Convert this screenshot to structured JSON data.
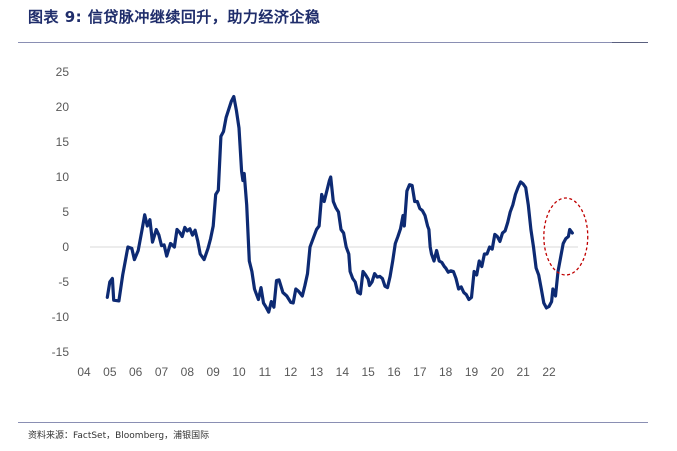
{
  "header": {
    "title": "图表 9: 信贷脉冲继续回升，助力经济企稳"
  },
  "footer": {
    "source": "资料来源：FactSet，Bloomberg，浦银国际"
  },
  "colors": {
    "series": "#0d2a73",
    "highlight": "#c00000",
    "title": "#1f2d6b"
  },
  "chart_data": {
    "type": "line",
    "title": "信贷脉冲继续回升，助力经济企稳",
    "xlabel": "",
    "ylabel": "",
    "xlim": [
      2004,
      2023.2
    ],
    "ylim": [
      -15,
      25
    ],
    "y_ticks": [
      25,
      20,
      15,
      10,
      5,
      0,
      -5,
      -10,
      -15
    ],
    "x_ticks": [
      {
        "label": "04",
        "value": 2004
      },
      {
        "label": "05",
        "value": 2005
      },
      {
        "label": "06",
        "value": 2006
      },
      {
        "label": "07",
        "value": 2007
      },
      {
        "label": "08",
        "value": 2008
      },
      {
        "label": "09",
        "value": 2009
      },
      {
        "label": "10",
        "value": 2010
      },
      {
        "label": "11",
        "value": 2011
      },
      {
        "label": "12",
        "value": 2012
      },
      {
        "label": "13",
        "value": 2013
      },
      {
        "label": "14",
        "value": 2014
      },
      {
        "label": "15",
        "value": 2015
      },
      {
        "label": "16",
        "value": 2016
      },
      {
        "label": "17",
        "value": 2017
      },
      {
        "label": "18",
        "value": 2018
      },
      {
        "label": "19",
        "value": 2019
      },
      {
        "label": "20",
        "value": 2020
      },
      {
        "label": "21",
        "value": 2021
      },
      {
        "label": "22",
        "value": 2022
      }
    ],
    "grid": false,
    "legend": "none",
    "series": [
      {
        "points": [
          [
            2004.9,
            -7.2
          ],
          [
            2005.0,
            -5.0
          ],
          [
            2005.1,
            -4.5
          ],
          [
            2005.15,
            -7.6
          ],
          [
            2005.35,
            -7.7
          ],
          [
            2005.5,
            -4.0
          ],
          [
            2005.7,
            0.0
          ],
          [
            2005.85,
            -0.2
          ],
          [
            2005.95,
            -1.8
          ],
          [
            2006.1,
            -0.5
          ],
          [
            2006.25,
            2.5
          ],
          [
            2006.35,
            4.6
          ],
          [
            2006.45,
            3.0
          ],
          [
            2006.55,
            3.9
          ],
          [
            2006.65,
            0.7
          ],
          [
            2006.8,
            2.5
          ],
          [
            2006.9,
            1.7
          ],
          [
            2007.0,
            0.2
          ],
          [
            2007.1,
            0.3
          ],
          [
            2007.2,
            -1.3
          ],
          [
            2007.35,
            0.5
          ],
          [
            2007.5,
            0.0
          ],
          [
            2007.6,
            2.5
          ],
          [
            2007.7,
            2.1
          ],
          [
            2007.8,
            1.5
          ],
          [
            2007.9,
            2.8
          ],
          [
            2008.0,
            2.3
          ],
          [
            2008.1,
            2.6
          ],
          [
            2008.2,
            1.7
          ],
          [
            2008.3,
            2.4
          ],
          [
            2008.4,
            0.9
          ],
          [
            2008.5,
            -1.0
          ],
          [
            2008.65,
            -1.8
          ],
          [
            2008.8,
            -0.2
          ],
          [
            2008.9,
            1.2
          ],
          [
            2009.0,
            3.0
          ],
          [
            2009.1,
            7.5
          ],
          [
            2009.2,
            8.1
          ],
          [
            2009.3,
            15.8
          ],
          [
            2009.4,
            16.5
          ],
          [
            2009.5,
            18.5
          ],
          [
            2009.7,
            20.8
          ],
          [
            2009.8,
            21.5
          ],
          [
            2009.9,
            19.5
          ],
          [
            2010.0,
            17.0
          ],
          [
            2010.1,
            10.8
          ],
          [
            2010.15,
            9.5
          ],
          [
            2010.2,
            10.5
          ],
          [
            2010.3,
            6.0
          ],
          [
            2010.4,
            -2.0
          ],
          [
            2010.5,
            -3.5
          ],
          [
            2010.6,
            -6.0
          ],
          [
            2010.75,
            -7.5
          ],
          [
            2010.85,
            -5.8
          ],
          [
            2010.95,
            -8.0
          ],
          [
            2011.05,
            -8.6
          ],
          [
            2011.15,
            -9.3
          ],
          [
            2011.25,
            -7.8
          ],
          [
            2011.35,
            -8.6
          ],
          [
            2011.45,
            -4.8
          ],
          [
            2011.55,
            -4.7
          ],
          [
            2011.7,
            -6.5
          ],
          [
            2011.85,
            -7.0
          ],
          [
            2012.0,
            -7.9
          ],
          [
            2012.1,
            -8.0
          ],
          [
            2012.2,
            -6.0
          ],
          [
            2012.3,
            -6.3
          ],
          [
            2012.45,
            -7.0
          ],
          [
            2012.55,
            -5.5
          ],
          [
            2012.65,
            -3.8
          ],
          [
            2012.75,
            0.0
          ],
          [
            2012.9,
            1.5
          ],
          [
            2013.0,
            2.5
          ],
          [
            2013.1,
            3.0
          ],
          [
            2013.2,
            7.5
          ],
          [
            2013.3,
            6.5
          ],
          [
            2013.4,
            8.0
          ],
          [
            2013.5,
            9.5
          ],
          [
            2013.55,
            10.0
          ],
          [
            2013.65,
            6.5
          ],
          [
            2013.75,
            5.6
          ],
          [
            2013.85,
            5.0
          ],
          [
            2013.95,
            2.5
          ],
          [
            2014.05,
            2.0
          ],
          [
            2014.15,
            0.0
          ],
          [
            2014.25,
            -1.0
          ],
          [
            2014.3,
            -3.5
          ],
          [
            2014.4,
            -4.5
          ],
          [
            2014.5,
            -5.0
          ],
          [
            2014.6,
            -6.5
          ],
          [
            2014.7,
            -6.7
          ],
          [
            2014.8,
            -3.5
          ],
          [
            2014.9,
            -4.0
          ],
          [
            2015.0,
            -4.6
          ],
          [
            2015.05,
            -5.5
          ],
          [
            2015.15,
            -5.0
          ],
          [
            2015.25,
            -3.8
          ],
          [
            2015.35,
            -4.3
          ],
          [
            2015.45,
            -4.2
          ],
          [
            2015.55,
            -4.5
          ],
          [
            2015.65,
            -5.6
          ],
          [
            2015.75,
            -5.8
          ],
          [
            2015.85,
            -4.2
          ],
          [
            2015.95,
            -2.0
          ],
          [
            2016.05,
            0.5
          ],
          [
            2016.15,
            1.5
          ],
          [
            2016.25,
            2.6
          ],
          [
            2016.35,
            4.5
          ],
          [
            2016.4,
            3.0
          ],
          [
            2016.5,
            8.0
          ],
          [
            2016.6,
            8.9
          ],
          [
            2016.7,
            8.8
          ],
          [
            2016.8,
            6.5
          ],
          [
            2016.9,
            6.5
          ],
          [
            2017.0,
            5.5
          ],
          [
            2017.1,
            5.2
          ],
          [
            2017.2,
            4.5
          ],
          [
            2017.3,
            3.0
          ],
          [
            2017.35,
            2.5
          ],
          [
            2017.4,
            0.0
          ],
          [
            2017.45,
            -1.0
          ],
          [
            2017.55,
            -2.0
          ],
          [
            2017.65,
            -0.5
          ],
          [
            2017.75,
            -2.0
          ],
          [
            2017.85,
            -2.2
          ],
          [
            2017.95,
            -2.8
          ],
          [
            2018.0,
            -3.0
          ],
          [
            2018.1,
            -3.6
          ],
          [
            2018.2,
            -3.4
          ],
          [
            2018.3,
            -3.5
          ],
          [
            2018.4,
            -4.5
          ],
          [
            2018.5,
            -6.0
          ],
          [
            2018.6,
            -5.7
          ],
          [
            2018.7,
            -6.5
          ],
          [
            2018.8,
            -6.8
          ],
          [
            2018.9,
            -7.5
          ],
          [
            2019.0,
            -7.2
          ],
          [
            2019.1,
            -3.5
          ],
          [
            2019.2,
            -4.0
          ],
          [
            2019.3,
            -2.0
          ],
          [
            2019.4,
            -2.8
          ],
          [
            2019.5,
            -1.0
          ],
          [
            2019.6,
            -1.0
          ],
          [
            2019.7,
            0.0
          ],
          [
            2019.8,
            -0.3
          ],
          [
            2019.9,
            1.8
          ],
          [
            2020.0,
            1.5
          ],
          [
            2020.1,
            0.8
          ],
          [
            2020.2,
            2.0
          ],
          [
            2020.3,
            2.3
          ],
          [
            2020.4,
            3.5
          ],
          [
            2020.5,
            5.0
          ],
          [
            2020.6,
            6.0
          ],
          [
            2020.7,
            7.5
          ],
          [
            2020.8,
            8.5
          ],
          [
            2020.9,
            9.3
          ],
          [
            2021.0,
            9.0
          ],
          [
            2021.1,
            8.5
          ],
          [
            2021.2,
            6.0
          ],
          [
            2021.3,
            2.5
          ],
          [
            2021.4,
            0.0
          ],
          [
            2021.5,
            -3.0
          ],
          [
            2021.6,
            -4.0
          ],
          [
            2021.7,
            -6.0
          ],
          [
            2021.8,
            -8.0
          ],
          [
            2021.9,
            -8.7
          ],
          [
            2022.0,
            -8.5
          ],
          [
            2022.1,
            -7.8
          ],
          [
            2022.15,
            -6.0
          ],
          [
            2022.25,
            -7.0
          ],
          [
            2022.35,
            -3.5
          ],
          [
            2022.45,
            -1.5
          ],
          [
            2022.55,
            0.5
          ],
          [
            2022.65,
            1.2
          ],
          [
            2022.75,
            1.5
          ],
          [
            2022.8,
            2.5
          ],
          [
            2022.9,
            2.0
          ]
        ]
      }
    ],
    "annotations": [
      {
        "type": "ellipse",
        "shape": "dashed",
        "x_center": 2022.65,
        "y_center": 1.5,
        "x_radius": 0.85,
        "y_radius": 5.5
      }
    ]
  }
}
